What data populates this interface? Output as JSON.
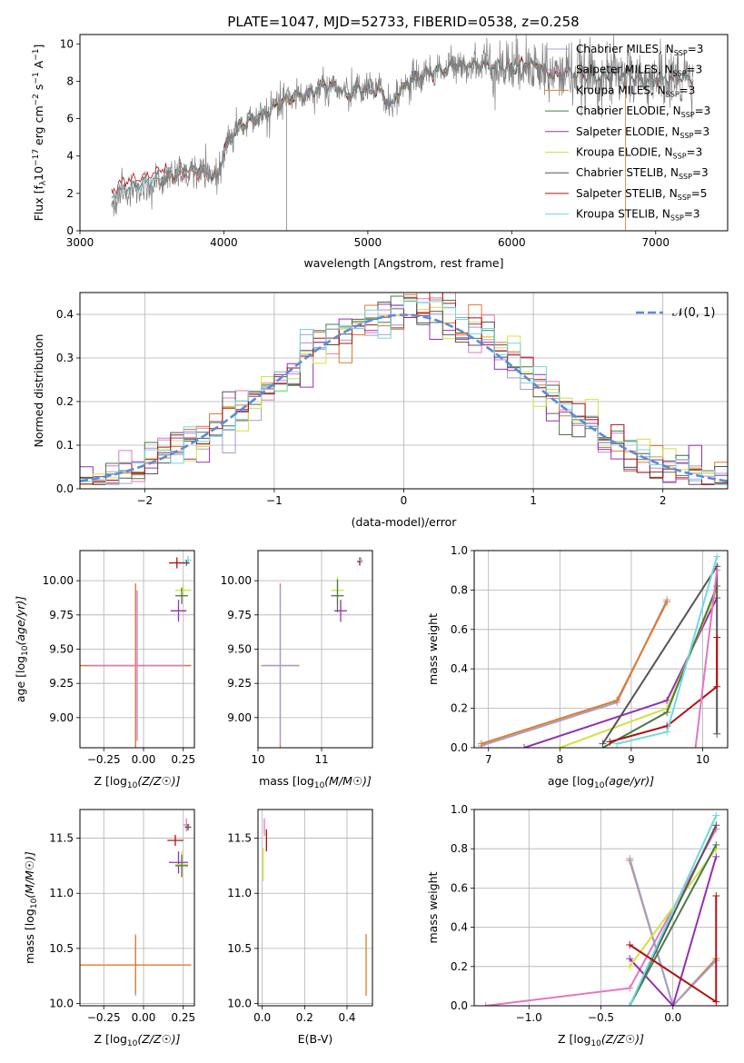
{
  "figure": {
    "title": "PLATE=1047, MJD=52733, FIBERID=0538, z=0.258"
  },
  "colors": {
    "Chabrier MILES": "#a0a0d0",
    "Salpeter MILES": "#e377c2",
    "Kroupa MILES": "#e07b28",
    "Chabrier ELODIE": "#4a7a4a",
    "Salpeter ELODIE": "#9430b0",
    "Kroupa ELODIE": "#d4e040",
    "Chabrier STELIB": "#555555",
    "Salpeter STELIB": "#b01010",
    "Kroupa STELIB": "#70d8e0",
    "data": "#808080",
    "gaussian": "#5b8bd8",
    "grid": "#b0b0b0"
  },
  "chart_data": [
    {
      "id": "spectrum",
      "type": "line",
      "title": "PLATE=1047, MJD=52733, FIBERID=0538, z=0.258",
      "xlabel": "wavelength [Angstrom, rest frame]",
      "ylabel": "Flux [f_λ 10^-17 erg cm^-2 s^-1 A^-1]",
      "xlim": [
        3000,
        7500
      ],
      "ylim": [
        0,
        10.5
      ],
      "xticks": [
        3000,
        4000,
        5000,
        6000,
        7000
      ],
      "yticks": [
        0,
        2,
        4,
        6,
        8,
        10
      ],
      "grid": false,
      "legend_position": "top-right",
      "continuum": {
        "x": [
          3220,
          3300,
          3400,
          3500,
          3600,
          3700,
          3800,
          3900,
          3950,
          4000,
          4100,
          4200,
          4300,
          4400,
          4500,
          4600,
          4700,
          4800,
          4860,
          4900,
          5000,
          5100,
          5170,
          5200,
          5300,
          5400,
          5500,
          5600,
          5700,
          5800,
          5900,
          6000,
          6100,
          6200,
          6300,
          6400,
          6500,
          6600,
          6700,
          6800,
          6900,
          7000,
          7100,
          7200,
          7260
        ],
        "y": [
          1.6,
          2.0,
          2.2,
          2.4,
          2.8,
          3.0,
          3.1,
          3.0,
          2.8,
          4.3,
          5.5,
          6.0,
          6.3,
          6.9,
          7.2,
          7.3,
          7.8,
          7.6,
          7.2,
          7.5,
          7.6,
          7.4,
          6.6,
          7.3,
          8.0,
          8.4,
          8.6,
          8.8,
          8.9,
          8.9,
          8.8,
          8.7,
          9.0,
          8.7,
          8.3,
          8.5,
          8.3,
          8.2,
          8.3,
          8.4,
          8.0,
          8.1,
          8.1,
          8.2,
          8.1
        ]
      },
      "series": [
        {
          "name": "Chabrier MILES, N_SSP=3",
          "x_start": 3540,
          "x_end": 7260
        },
        {
          "name": "Salpeter MILES, N_SSP=3",
          "x_start": 3540,
          "x_end": 7260
        },
        {
          "name": "Kroupa MILES, N_SSP=3",
          "x_start": 3540,
          "x_end": 7260
        },
        {
          "name": "Chabrier ELODIE, N_SSP=3",
          "x_start": 3900,
          "x_end": 6800
        },
        {
          "name": "Salpeter ELODIE, N_SSP=3",
          "x_start": 3900,
          "x_end": 6800
        },
        {
          "name": "Kroupa ELODIE, N_SSP=3",
          "x_start": 3900,
          "x_end": 6800
        },
        {
          "name": "Chabrier STELIB, N_SSP=3",
          "x_start": 3220,
          "x_end": 7260
        },
        {
          "name": "Salpeter STELIB, N_SSP=5",
          "x_start": 3220,
          "x_end": 7260
        },
        {
          "name": "Kroupa STELIB, N_SSP=3",
          "x_start": 3220,
          "x_end": 7260
        }
      ]
    },
    {
      "id": "residuals",
      "type": "step",
      "xlabel": "(data-model)/error",
      "ylabel": "Normed distribution",
      "xlim": [
        -2.5,
        2.5
      ],
      "ylim": [
        0,
        0.45
      ],
      "xticks": [
        -2,
        -1,
        0,
        1,
        2
      ],
      "yticks": [
        0.0,
        0.1,
        0.2,
        0.3,
        0.4
      ],
      "grid": true,
      "legend": "𝒩(0, 1)",
      "legend_position": "top-right",
      "bin_width": 0.1,
      "bin_start": -2.5
    },
    {
      "id": "age_vs_Z",
      "type": "errorbar",
      "xlabel": "Z [log10(Z/Z☉)]",
      "ylabel": "age [log10(age/yr)]",
      "xlim": [
        -0.4,
        0.32
      ],
      "ylim": [
        8.78,
        10.22
      ],
      "xticks": [
        -0.25,
        0.0,
        0.25
      ],
      "yticks": [
        9.0,
        9.25,
        9.5,
        9.75,
        10.0
      ],
      "grid": true,
      "points": [
        {
          "series": "Chabrier MILES",
          "x": -0.05,
          "y": 9.38,
          "xerr": 0.35,
          "yerr": 0.6
        },
        {
          "series": "Kroupa MILES",
          "x": -0.05,
          "y": 9.38,
          "xerr": 0.35,
          "yerr": 0.6
        },
        {
          "series": "Salpeter MILES",
          "x": -0.04,
          "y": 9.38,
          "xerr": 0.3,
          "yerr": 0.55
        },
        {
          "series": "Kroupa ELODIE",
          "x": 0.25,
          "y": 9.93,
          "xerr": 0.05,
          "yerr": 0.04
        },
        {
          "series": "Chabrier ELODIE",
          "x": 0.24,
          "y": 9.89,
          "xerr": 0.04,
          "yerr": 0.06
        },
        {
          "series": "Salpeter ELODIE",
          "x": 0.22,
          "y": 9.78,
          "xerr": 0.05,
          "yerr": 0.08
        },
        {
          "series": "Salpeter STELIB",
          "x": 0.21,
          "y": 10.13,
          "xerr": 0.05,
          "yerr": 0.04
        },
        {
          "series": "Kroupa STELIB",
          "x": 0.28,
          "y": 10.15,
          "xerr": 0.02,
          "yerr": 0.03
        },
        {
          "series": "Chabrier STELIB",
          "x": 0.27,
          "y": 10.13,
          "xerr": 0.02,
          "yerr": 0.02
        }
      ]
    },
    {
      "id": "age_vs_mass",
      "type": "errorbar",
      "xlabel": "mass [log10(M/M☉)]",
      "ylabel": "",
      "xlim": [
        10.0,
        11.8
      ],
      "ylim": [
        8.78,
        10.22
      ],
      "xticks": [
        10,
        11
      ],
      "yticks": [
        9.0,
        9.25,
        9.5,
        9.75,
        10.0
      ],
      "grid": true,
      "points": [
        {
          "series": "Kroupa MILES",
          "x": 10.35,
          "y": 9.38,
          "xerr": 0.3,
          "yerr": 0.6
        },
        {
          "series": "Chabrier MILES",
          "x": 10.35,
          "y": 9.38,
          "xerr": 0.28,
          "yerr": 0.58
        },
        {
          "series": "Kroupa ELODIE",
          "x": 11.25,
          "y": 9.93,
          "xerr": 0.1,
          "yerr": 0.1
        },
        {
          "series": "Chabrier ELODIE",
          "x": 11.25,
          "y": 9.89,
          "xerr": 0.1,
          "yerr": 0.12
        },
        {
          "series": "Salpeter ELODIE",
          "x": 11.3,
          "y": 9.78,
          "xerr": 0.1,
          "yerr": 0.08
        },
        {
          "series": "Salpeter STELIB",
          "x": 11.6,
          "y": 10.14,
          "xerr": 0.04,
          "yerr": 0.03
        },
        {
          "series": "Kroupa STELIB",
          "x": 11.62,
          "y": 10.15,
          "xerr": 0.03,
          "yerr": 0.02
        }
      ]
    },
    {
      "id": "weight_vs_age",
      "type": "line",
      "xlabel": "age [log10(age/yr)]",
      "ylabel": "mass weight",
      "xlim": [
        6.8,
        10.35
      ],
      "ylim": [
        0,
        1.0
      ],
      "xticks": [
        7,
        8,
        9,
        10
      ],
      "yticks": [
        0.0,
        0.2,
        0.4,
        0.6,
        0.8,
        1.0
      ],
      "grid": true,
      "series": [
        {
          "name": "Chabrier MILES",
          "x": [
            6.9,
            8.8,
            9.5
          ],
          "y": [
            0.01,
            0.23,
            0.75
          ]
        },
        {
          "name": "Kroupa MILES",
          "x": [
            6.9,
            8.8,
            9.5
          ],
          "y": [
            0.02,
            0.24,
            0.74
          ]
        },
        {
          "name": "Salpeter ELODIE",
          "x": [
            7.5,
            9.5,
            10.2
          ],
          "y": [
            0.0,
            0.24,
            0.76
          ]
        },
        {
          "name": "Kroupa ELODIE",
          "x": [
            8.0,
            9.5,
            10.2
          ],
          "y": [
            0.0,
            0.2,
            0.8
          ]
        },
        {
          "name": "Chabrier ELODIE",
          "x": [
            8.6,
            9.5,
            10.2
          ],
          "y": [
            0.0,
            0.18,
            0.82
          ]
        },
        {
          "name": "Chabrier STELIB",
          "x": [
            8.6,
            10.2,
            10.2
          ],
          "y": [
            0.02,
            0.92,
            0.07
          ]
        },
        {
          "name": "Salpeter STELIB",
          "x": [
            8.7,
            9.5,
            10.2,
            10.2
          ],
          "y": [
            0.03,
            0.11,
            0.31,
            0.56
          ]
        },
        {
          "name": "Kroupa STELIB",
          "x": [
            8.8,
            9.5,
            10.2
          ],
          "y": [
            0.02,
            0.08,
            0.97
          ]
        },
        {
          "name": "Salpeter MILES",
          "x": [
            9.9,
            10.2
          ],
          "y": [
            0.0,
            0.9
          ]
        }
      ]
    },
    {
      "id": "mass_vs_Z",
      "type": "errorbar",
      "xlabel": "Z [log10(Z/Z☉)]",
      "ylabel": "mass [log10(M/M☉)]",
      "xlim": [
        -0.4,
        0.32
      ],
      "ylim": [
        9.98,
        11.76
      ],
      "xticks": [
        -0.25,
        0.0,
        0.25
      ],
      "yticks": [
        10.0,
        10.5,
        11.0,
        11.5
      ],
      "grid": true,
      "points": [
        {
          "series": "Chabrier MILES",
          "x": -0.05,
          "y": 10.35,
          "xerr": 0.35,
          "yerr": 0.28
        },
        {
          "series": "Kroupa MILES",
          "x": -0.05,
          "y": 10.35,
          "xerr": 0.35,
          "yerr": 0.26
        },
        {
          "series": "Salpeter ELODIE",
          "x": 0.22,
          "y": 11.28,
          "xerr": 0.06,
          "yerr": 0.1
        },
        {
          "series": "Kroupa ELODIE",
          "x": 0.24,
          "y": 11.26,
          "xerr": 0.04,
          "yerr": 0.12
        },
        {
          "series": "Chabrier ELODIE",
          "x": 0.24,
          "y": 11.25,
          "xerr": 0.04,
          "yerr": 0.1
        },
        {
          "series": "Salpeter STELIB",
          "x": 0.2,
          "y": 11.48,
          "xerr": 0.05,
          "yerr": 0.05
        },
        {
          "series": "Salpeter MILES",
          "x": 0.27,
          "y": 11.62,
          "xerr": 0.02,
          "yerr": 0.06
        },
        {
          "series": "Chabrier STELIB",
          "x": 0.28,
          "y": 11.6,
          "xerr": 0.02,
          "yerr": 0.03
        }
      ]
    },
    {
      "id": "mass_vs_EBV",
      "type": "errorbar",
      "xlabel": "E(B-V)",
      "ylabel": "",
      "xlim": [
        -0.02,
        0.52
      ],
      "ylim": [
        9.98,
        11.76
      ],
      "xticks": [
        0.0,
        0.2,
        0.4
      ],
      "yticks": [
        10.0,
        10.5,
        11.0,
        11.5
      ],
      "grid": true,
      "points": [
        {
          "series": "Salpeter STELIB",
          "x": 0.02,
          "y": 11.48,
          "xerr": 0.0,
          "yerr": 0.1
        },
        {
          "series": "Salpeter MILES",
          "x": 0.01,
          "y": 11.6,
          "xerr": 0.0,
          "yerr": 0.08
        },
        {
          "series": "Kroupa ELODIE",
          "x": 0.005,
          "y": 11.26,
          "xerr": 0.0,
          "yerr": 0.15
        },
        {
          "series": "Kroupa MILES",
          "x": 0.49,
          "y": 10.35,
          "xerr": 0.0,
          "yerr": 0.28
        }
      ]
    },
    {
      "id": "weight_vs_Z",
      "type": "line",
      "xlabel": "Z [log10(Z/Z☉)]",
      "ylabel": "mass weight",
      "xlim": [
        -1.38,
        0.38
      ],
      "ylim": [
        0,
        1.0
      ],
      "xticks": [
        -1.0,
        -0.5,
        0.0
      ],
      "yticks": [
        0.0,
        0.2,
        0.4,
        0.6,
        0.8,
        1.0
      ],
      "grid": true,
      "series": [
        {
          "name": "Salpeter MILES",
          "x": [
            -1.3,
            -0.3,
            0.3
          ],
          "y": [
            0.0,
            0.09,
            0.9
          ]
        },
        {
          "name": "Kroupa MILES",
          "x": [
            -0.3,
            0.0,
            0.3
          ],
          "y": [
            0.74,
            0.0,
            0.24
          ]
        },
        {
          "name": "Chabrier MILES",
          "x": [
            -0.3,
            0.0,
            0.3
          ],
          "y": [
            0.75,
            0.0,
            0.23
          ]
        },
        {
          "name": "Salpeter ELODIE",
          "x": [
            -0.3,
            0.0,
            0.3
          ],
          "y": [
            0.24,
            0.0,
            0.76
          ]
        },
        {
          "name": "Kroupa ELODIE",
          "x": [
            -0.3,
            0.3
          ],
          "y": [
            0.2,
            0.8
          ]
        },
        {
          "name": "Chabrier ELODIE",
          "x": [
            -0.3,
            0.3
          ],
          "y": [
            0.0,
            0.82
          ]
        },
        {
          "name": "Chabrier STELIB",
          "x": [
            -0.3,
            0.3
          ],
          "y": [
            0.0,
            0.92
          ]
        },
        {
          "name": "Kroupa STELIB",
          "x": [
            -0.3,
            0.3
          ],
          "y": [
            0.0,
            0.97
          ]
        },
        {
          "name": "Salpeter STELIB",
          "x": [
            -0.3,
            0.3,
            0.3
          ],
          "y": [
            0.31,
            0.02,
            0.56
          ]
        }
      ]
    }
  ]
}
